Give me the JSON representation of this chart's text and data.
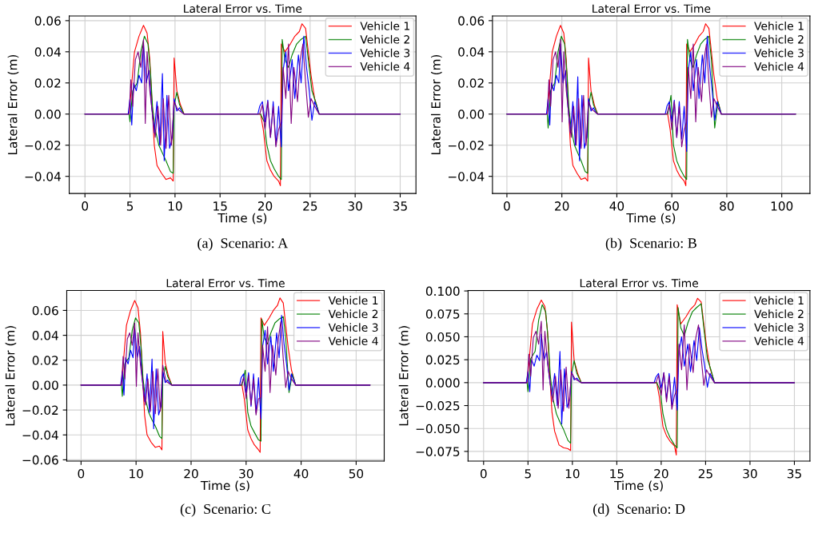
{
  "chart_data": [
    {
      "type": "line",
      "title": "Lateral Error vs. Time",
      "xlabel": "Time (s)",
      "ylabel": "Lateral Error (m)",
      "xlim": [
        -1.75,
        36.75
      ],
      "ylim": [
        -0.051,
        0.063
      ],
      "xticks": [
        0,
        5,
        10,
        15,
        20,
        25,
        30,
        35
      ],
      "yticks": [
        {
          "value": -0.04,
          "label": "−0.04"
        },
        {
          "value": -0.02,
          "label": "−0.02"
        },
        {
          "value": 0,
          "label": "0.00"
        },
        {
          "value": 0.02,
          "label": "0.02"
        },
        {
          "value": 0.04,
          "label": "0.04"
        },
        {
          "value": 0.06,
          "label": "0.06"
        }
      ],
      "grid": true,
      "legend": "top right",
      "annotations": [
        "(a)  Scenario: A"
      ],
      "series": [
        {
          "name": "Vehicle 1",
          "color": "#ff0000",
          "x": [
            0,
            4.9,
            5.2,
            5.5,
            6.0,
            6.5,
            6.9,
            7.2,
            7.5,
            7.7,
            8.0,
            8.5,
            9.0,
            9.5,
            9.8,
            9.9,
            10.2,
            10.6,
            11.0,
            19.5,
            19.8,
            20.2,
            20.6,
            21.0,
            21.5,
            21.7,
            21.8,
            22.2,
            22.8,
            23.3,
            23.8,
            24.1,
            24.5,
            24.8,
            25.1,
            25.5,
            26.0,
            35
          ],
          "values": [
            0,
            0,
            0.02,
            0.04,
            0.05,
            0.057,
            0.052,
            0.035,
            0,
            -0.02,
            -0.033,
            -0.038,
            -0.042,
            -0.041,
            -0.043,
            0.036,
            0.015,
            0.006,
            0,
            0,
            -0.01,
            -0.03,
            -0.036,
            -0.04,
            -0.043,
            -0.046,
            0.045,
            0.04,
            0.045,
            0.05,
            0.053,
            0.058,
            0.055,
            0.04,
            0.025,
            0.01,
            0,
            0
          ]
        },
        {
          "name": "Vehicle 2",
          "color": "#008000",
          "x": [
            0,
            4.9,
            5.0,
            5.3,
            5.8,
            6.2,
            6.6,
            7.0,
            7.3,
            7.5,
            7.8,
            8.2,
            8.6,
            9.0,
            9.5,
            9.8,
            9.9,
            10.2,
            10.5,
            11.0,
            19.5,
            19.9,
            20.2,
            20.6,
            21.0,
            21.5,
            21.8,
            21.9,
            22.2,
            22.6,
            23.0,
            23.5,
            24.0,
            24.5,
            24.8,
            25.2,
            25.6,
            26.0,
            35
          ],
          "values": [
            0,
            0,
            -0.005,
            0.015,
            0.02,
            0.04,
            0.05,
            0.045,
            0.025,
            0.005,
            -0.01,
            -0.02,
            -0.025,
            -0.03,
            -0.037,
            -0.038,
            0.005,
            0.014,
            0.006,
            0,
            0,
            -0.005,
            -0.02,
            -0.03,
            -0.035,
            -0.04,
            -0.042,
            0.048,
            0.035,
            0.03,
            0.038,
            0.045,
            0.048,
            0.05,
            0.035,
            0.015,
            0.008,
            0,
            0
          ]
        },
        {
          "name": "Vehicle 3",
          "color": "#0000ff",
          "x": [
            0,
            4.8,
            5.0,
            5.2,
            5.4,
            5.7,
            6.0,
            6.3,
            6.5,
            6.8,
            7.1,
            7.4,
            7.7,
            8.0,
            8.3,
            8.6,
            8.8,
            9.1,
            9.4,
            9.7,
            9.9,
            10.2,
            10.5,
            10.8,
            11.0,
            19.2,
            19.4,
            19.7,
            20.0,
            20.3,
            20.6,
            20.9,
            21.2,
            21.5,
            21.8,
            22.0,
            22.3,
            22.6,
            23.0,
            23.3,
            23.7,
            24.0,
            24.3,
            24.6,
            24.9,
            25.2,
            25.5,
            26.0,
            35
          ],
          "values": [
            0,
            0,
            0.01,
            -0.007,
            0.02,
            0.015,
            0.025,
            0.02,
            0.045,
            0.02,
            0.028,
            0.005,
            -0.012,
            0.008,
            -0.02,
            0.026,
            -0.03,
            0.012,
            -0.022,
            -0.015,
            0.01,
            0.002,
            0.004,
            0.001,
            0,
            0,
            0.005,
            0.008,
            -0.005,
            0.009,
            -0.015,
            0.008,
            -0.02,
            0.005,
            -0.021,
            0.028,
            0.04,
            0.015,
            0.035,
            0.01,
            0.038,
            0.02,
            0.05,
            0.03,
            0.015,
            -0.004,
            0.008,
            0,
            0
          ]
        },
        {
          "name": "Vehicle 4",
          "color": "#800080",
          "x": [
            0,
            4.9,
            5.1,
            5.3,
            5.6,
            5.9,
            6.2,
            6.5,
            6.7,
            6.9,
            7.2,
            7.5,
            7.8,
            8.1,
            8.4,
            8.7,
            9.0,
            9.3,
            9.6,
            9.9,
            10.3,
            11.0,
            19.4,
            19.7,
            20.0,
            20.3,
            20.6,
            20.9,
            21.2,
            21.5,
            21.8,
            22.0,
            22.3,
            22.6,
            22.9,
            23.2,
            23.6,
            23.9,
            24.2,
            24.5,
            24.8,
            25.1,
            25.5,
            26.0,
            35
          ],
          "values": [
            0,
            0,
            0.022,
            0.005,
            0.035,
            0.04,
            0.03,
            0.048,
            -0.006,
            0.04,
            0.015,
            0,
            -0.015,
            0.005,
            -0.02,
            0.01,
            -0.022,
            0.012,
            -0.02,
            0.008,
            0.003,
            0,
            0,
            0.006,
            -0.01,
            0.008,
            -0.015,
            0.005,
            -0.021,
            -0.01,
            -0.005,
            0.03,
            0.01,
            0.045,
            -0.006,
            0.03,
            0.008,
            0.035,
            0.045,
            0.02,
            -0.002,
            0.01,
            0.005,
            0,
            0
          ]
        }
      ]
    },
    {
      "type": "line",
      "title": "Lateral Error vs. Time",
      "xlabel": "Time (s)",
      "ylabel": "Lateral Error (m)",
      "xlim": [
        -5.25,
        110.25
      ],
      "ylim": [
        -0.051,
        0.063
      ],
      "xticks": [
        0,
        20,
        40,
        60,
        80,
        100
      ],
      "yticks": [
        {
          "value": -0.04,
          "label": "−0.04"
        },
        {
          "value": -0.02,
          "label": "−0.02"
        },
        {
          "value": 0,
          "label": "0.00"
        },
        {
          "value": 0.02,
          "label": "0.02"
        },
        {
          "value": 0.04,
          "label": "0.04"
        },
        {
          "value": 0.06,
          "label": "0.06"
        }
      ],
      "grid": true,
      "legend": "top right",
      "annotations": [
        "(b)  Scenario: B"
      ],
      "series": [
        {
          "name": "Vehicle 1",
          "color": "#ff0000",
          "x": [
            0,
            14.7,
            15.6,
            16.5,
            18,
            19.5,
            20.7,
            21.6,
            22.5,
            23.1,
            24,
            25.5,
            27,
            28.5,
            29.4,
            29.7,
            30.6,
            31.8,
            33,
            58.5,
            59.4,
            60.6,
            61.8,
            63,
            64.5,
            65.1,
            65.4,
            66.6,
            68.4,
            69.9,
            71.4,
            72.3,
            73.5,
            74.4,
            75.3,
            76.5,
            78,
            105
          ],
          "values": [
            0,
            0,
            0.02,
            0.04,
            0.05,
            0.057,
            0.052,
            0.035,
            0,
            -0.02,
            -0.033,
            -0.038,
            -0.042,
            -0.041,
            -0.043,
            0.036,
            0.015,
            0.006,
            0,
            0,
            -0.01,
            -0.03,
            -0.036,
            -0.04,
            -0.043,
            -0.046,
            0.045,
            0.04,
            0.045,
            0.05,
            0.053,
            0.058,
            0.055,
            0.04,
            0.025,
            0.01,
            0,
            0
          ]
        },
        {
          "name": "Vehicle 2",
          "color": "#008000",
          "x": [
            0,
            14.7,
            15,
            15.9,
            17.4,
            18.6,
            19.8,
            21,
            21.9,
            22.5,
            23.4,
            24.6,
            25.8,
            27,
            28.5,
            29.4,
            29.7,
            30.6,
            31.5,
            33,
            58.5,
            59.7,
            60.6,
            61.8,
            63,
            64.5,
            65.4,
            65.7,
            66.6,
            67.8,
            69,
            70.5,
            72,
            73.5,
            74.4,
            75.6,
            76.8,
            78,
            105
          ],
          "values": [
            0,
            0,
            -0.009,
            0.015,
            0.02,
            0.04,
            0.05,
            0.045,
            0.025,
            0.005,
            -0.01,
            -0.02,
            -0.025,
            -0.03,
            -0.037,
            -0.038,
            0.005,
            0.014,
            0.006,
            0,
            0,
            0.012,
            -0.02,
            -0.03,
            -0.035,
            -0.04,
            -0.042,
            0.048,
            0.035,
            0.03,
            0.038,
            0.045,
            0.048,
            0.05,
            0.035,
            -0.009,
            0.008,
            0,
            0
          ]
        },
        {
          "name": "Vehicle 3",
          "color": "#0000ff",
          "x": [
            0,
            14.4,
            15,
            15.6,
            16.2,
            17.1,
            18,
            18.9,
            19.5,
            20.4,
            21.3,
            22.2,
            23.1,
            24,
            24.9,
            25.8,
            26.4,
            27.3,
            28.2,
            29.1,
            29.7,
            30.6,
            31.5,
            32.4,
            33,
            57.6,
            58.2,
            59.1,
            60,
            60.9,
            61.8,
            62.7,
            63.6,
            64.5,
            65.4,
            66,
            66.9,
            67.8,
            69,
            69.9,
            71.1,
            72,
            72.9,
            73.8,
            74.7,
            75.6,
            76.5,
            78,
            105
          ],
          "values": [
            0,
            0,
            0.01,
            -0.007,
            0.02,
            0.015,
            0.025,
            0.02,
            0.045,
            0.02,
            0.028,
            0.005,
            -0.012,
            0.008,
            -0.02,
            0.024,
            -0.03,
            0.012,
            -0.022,
            -0.015,
            0.01,
            0.002,
            0.004,
            0.001,
            0,
            0,
            0.005,
            0.008,
            -0.005,
            0.009,
            -0.015,
            0.008,
            -0.016,
            0.005,
            -0.024,
            0.028,
            0.04,
            0.015,
            0.035,
            0.01,
            0.038,
            0.02,
            0.05,
            0.03,
            0.015,
            -0.004,
            0.008,
            0,
            0
          ]
        },
        {
          "name": "Vehicle 4",
          "color": "#800080",
          "x": [
            0,
            14.7,
            15.3,
            15.9,
            16.8,
            17.7,
            18.6,
            19.5,
            20.1,
            20.7,
            21.6,
            22.5,
            23.4,
            24.3,
            25.2,
            26.1,
            27,
            27.9,
            28.8,
            29.7,
            30.9,
            33,
            58.2,
            59.1,
            60,
            60.9,
            61.8,
            62.7,
            63.6,
            64.5,
            65.4,
            66,
            66.9,
            67.8,
            68.7,
            69.6,
            70.8,
            71.7,
            72.6,
            73.5,
            74.4,
            75.3,
            76.5,
            78,
            105
          ],
          "values": [
            0,
            0,
            0.022,
            0.005,
            0.035,
            0.04,
            0.03,
            0.048,
            -0.005,
            0.04,
            0.015,
            0,
            -0.015,
            0.005,
            -0.02,
            0.01,
            -0.022,
            0.012,
            -0.02,
            0.008,
            0.003,
            0,
            0,
            0.006,
            -0.01,
            0.008,
            -0.015,
            0.005,
            -0.021,
            -0.01,
            -0.005,
            0.03,
            0.01,
            0.045,
            -0.005,
            0.03,
            0.008,
            0.035,
            0.045,
            0.02,
            -0.002,
            0.01,
            0.005,
            0,
            0
          ]
        }
      ]
    },
    {
      "type": "line",
      "title": "Lateral Error vs. Time",
      "xlabel": "Time (s)",
      "ylabel": "Lateral Error (m)",
      "xlim": [
        -2.6,
        55.1
      ],
      "ylim": [
        -0.061,
        0.076
      ],
      "xticks": [
        0,
        10,
        20,
        30,
        40,
        50
      ],
      "yticks": [
        {
          "value": -0.06,
          "label": "−0.06"
        },
        {
          "value": -0.04,
          "label": "−0.04"
        },
        {
          "value": -0.02,
          "label": "−0.02"
        },
        {
          "value": 0,
          "label": "0.00"
        },
        {
          "value": 0.02,
          "label": "0.02"
        },
        {
          "value": 0.04,
          "label": "0.04"
        },
        {
          "value": 0.06,
          "label": "0.06"
        }
      ],
      "grid": true,
      "legend": "top right",
      "annotations": [
        "(c)  Scenario: C"
      ],
      "series": [
        {
          "name": "Vehicle 1",
          "color": "#ff0000",
          "x": [
            0,
            7.35,
            7.8,
            8.25,
            9,
            9.75,
            10.35,
            10.8,
            11.25,
            11.55,
            12,
            12.75,
            13.5,
            14.25,
            14.7,
            14.85,
            15.3,
            15.9,
            16.5,
            29.25,
            29.7,
            30.3,
            30.9,
            31.5,
            32.25,
            32.55,
            32.7,
            33.3,
            34.2,
            34.95,
            35.7,
            36.15,
            36.75,
            37.2,
            37.65,
            38.25,
            39,
            52.5
          ],
          "values": [
            0,
            0,
            0.024,
            0.048,
            0.06,
            0.068,
            0.062,
            0.042,
            0,
            -0.024,
            -0.04,
            -0.046,
            -0.05,
            -0.049,
            -0.052,
            0.043,
            0.018,
            0.007,
            0,
            0,
            -0.012,
            -0.036,
            -0.043,
            -0.048,
            -0.052,
            -0.054,
            0.054,
            0.048,
            0.054,
            0.06,
            0.064,
            0.07,
            0.066,
            0.048,
            0.03,
            0.012,
            0,
            0
          ]
        },
        {
          "name": "Vehicle 2",
          "color": "#008000",
          "x": [
            0,
            7.35,
            7.5,
            7.95,
            8.7,
            9.3,
            9.9,
            10.5,
            10.95,
            11.25,
            11.7,
            12.3,
            12.9,
            13.5,
            14.25,
            14.7,
            14.85,
            15.3,
            15.75,
            16.5,
            29.25,
            29.85,
            30.3,
            30.9,
            31.5,
            32.25,
            32.7,
            32.85,
            33.3,
            33.9,
            34.5,
            35.25,
            36,
            36.75,
            37.2,
            37.8,
            38.4,
            39,
            52.5
          ],
          "values": [
            0,
            0,
            -0.009,
            0.017,
            0.022,
            0.044,
            0.054,
            0.05,
            0.028,
            0.006,
            -0.011,
            -0.022,
            -0.028,
            -0.033,
            -0.041,
            -0.043,
            0.005,
            0.015,
            0.007,
            0,
            0,
            0.012,
            -0.022,
            -0.033,
            -0.038,
            -0.044,
            -0.045,
            0.053,
            0.038,
            0.033,
            0.042,
            0.05,
            0.053,
            0.055,
            0.038,
            -0.006,
            0.009,
            0,
            0
          ]
        },
        {
          "name": "Vehicle 3",
          "color": "#0000ff",
          "x": [
            0,
            7.2,
            7.5,
            7.8,
            8.1,
            8.55,
            9,
            9.45,
            9.75,
            10.2,
            10.65,
            11.1,
            11.55,
            12,
            12.45,
            12.9,
            13.2,
            13.65,
            14.1,
            14.55,
            14.85,
            15.3,
            15.75,
            16.2,
            16.5,
            28.8,
            29.1,
            29.55,
            30,
            30.45,
            30.9,
            31.35,
            31.8,
            32.25,
            32.7,
            33,
            33.45,
            33.9,
            34.5,
            34.95,
            35.55,
            36,
            36.45,
            36.9,
            37.35,
            37.8,
            38.25,
            39,
            52.5
          ],
          "values": [
            0,
            0,
            0.011,
            -0.008,
            0.022,
            0.017,
            0.028,
            0.022,
            0.046,
            0.022,
            0.031,
            0.006,
            -0.013,
            0.009,
            -0.022,
            0.021,
            -0.035,
            0.013,
            -0.024,
            -0.017,
            0.011,
            0.002,
            0.004,
            0.001,
            0,
            0,
            0.006,
            0.009,
            -0.006,
            0.01,
            -0.017,
            0.009,
            -0.022,
            0.006,
            -0.027,
            0.031,
            0.044,
            0.017,
            0.039,
            0.011,
            0.042,
            0.022,
            0.056,
            0.033,
            0.017,
            -0.004,
            0.009,
            0,
            0
          ]
        },
        {
          "name": "Vehicle 4",
          "color": "#800080",
          "x": [
            0,
            7.35,
            7.65,
            7.95,
            8.4,
            8.85,
            9.3,
            9.75,
            10.05,
            10.35,
            10.8,
            11.25,
            11.7,
            12.15,
            12.6,
            13.05,
            13.5,
            13.95,
            14.4,
            14.85,
            15.45,
            16.5,
            29.1,
            29.55,
            30,
            30.45,
            30.9,
            31.35,
            31.8,
            32.25,
            32.7,
            33,
            33.45,
            33.9,
            34.35,
            34.8,
            35.4,
            35.85,
            36.3,
            36.75,
            37.2,
            37.65,
            38.25,
            39,
            52.5
          ],
          "values": [
            0,
            0,
            0.023,
            0.005,
            0.037,
            0.042,
            0.032,
            0.05,
            -0.001,
            0.042,
            0.016,
            0,
            -0.016,
            0.005,
            -0.021,
            0.011,
            -0.023,
            0.013,
            -0.021,
            0.016,
            0.003,
            0,
            0,
            0.006,
            -0.011,
            0.008,
            -0.016,
            0.005,
            -0.024,
            -0.011,
            -0.01,
            0.032,
            0.011,
            0.047,
            -0.006,
            0.032,
            0.008,
            0.037,
            0.051,
            0.021,
            -0.002,
            0.011,
            0.005,
            0,
            0
          ]
        }
      ]
    },
    {
      "type": "line",
      "title": "Lateral Error vs. Time",
      "xlabel": "Time (s)",
      "ylabel": "Lateral Error (m)",
      "xlim": [
        -1.75,
        36.75
      ],
      "ylim": [
        -0.0855,
        0.1005
      ],
      "xticks": [
        0,
        5,
        10,
        15,
        20,
        25,
        30,
        35
      ],
      "yticks": [
        {
          "value": -0.075,
          "label": "−0.075"
        },
        {
          "value": -0.05,
          "label": "−0.050"
        },
        {
          "value": -0.025,
          "label": "−0.025"
        },
        {
          "value": 0,
          "label": "0.000"
        },
        {
          "value": 0.025,
          "label": "0.025"
        },
        {
          "value": 0.05,
          "label": "0.050"
        },
        {
          "value": 0.075,
          "label": "0.075"
        },
        {
          "value": 0.1,
          "label": "0.100"
        }
      ],
      "grid": true,
      "legend": "top right",
      "annotations": [
        "(d)  Scenario: D"
      ],
      "series": [
        {
          "name": "Vehicle 1",
          "color": "#ff0000",
          "x": [
            0,
            4.9,
            5.2,
            5.5,
            6.0,
            6.5,
            6.9,
            7.2,
            7.5,
            7.7,
            8.0,
            8.5,
            9.0,
            9.5,
            9.8,
            9.9,
            10.2,
            10.6,
            11.0,
            19.5,
            19.8,
            20.2,
            20.6,
            21.0,
            21.5,
            21.7,
            21.8,
            22.2,
            22.8,
            23.3,
            23.8,
            24.1,
            24.5,
            24.8,
            25.1,
            25.5,
            26.0,
            35
          ],
          "values": [
            0,
            0,
            0.032,
            0.064,
            0.08,
            0.09,
            0.083,
            0.056,
            0,
            -0.032,
            -0.053,
            -0.068,
            -0.071,
            -0.072,
            -0.074,
            0.066,
            0.024,
            0.01,
            0,
            0,
            -0.016,
            -0.048,
            -0.058,
            -0.064,
            -0.069,
            -0.079,
            0.085,
            0.064,
            0.072,
            0.08,
            0.085,
            0.092,
            0.088,
            0.064,
            0.04,
            0.016,
            0,
            0
          ]
        },
        {
          "name": "Vehicle 2",
          "color": "#008000",
          "x": [
            0,
            4.9,
            5.0,
            5.3,
            5.8,
            6.2,
            6.6,
            7.0,
            7.3,
            7.5,
            7.8,
            8.2,
            8.6,
            9.0,
            9.5,
            9.8,
            9.9,
            10.2,
            10.5,
            11.0,
            19.5,
            19.9,
            20.2,
            20.6,
            21.0,
            21.5,
            21.8,
            21.9,
            22.2,
            22.6,
            23.0,
            23.5,
            24.0,
            24.5,
            24.8,
            25.2,
            25.6,
            26.0,
            35
          ],
          "values": [
            0,
            0,
            -0.01,
            0.026,
            0.034,
            0.068,
            0.085,
            0.077,
            0.043,
            0.009,
            -0.017,
            -0.034,
            -0.043,
            -0.051,
            -0.063,
            -0.066,
            0.009,
            0.024,
            0.01,
            0,
            0,
            -0.009,
            -0.034,
            -0.051,
            -0.06,
            -0.068,
            -0.071,
            0.082,
            0.06,
            0.051,
            0.065,
            0.077,
            0.082,
            0.086,
            0.06,
            0.026,
            0.014,
            0,
            0
          ]
        },
        {
          "name": "Vehicle 3",
          "color": "#0000ff",
          "x": [
            0,
            4.8,
            5.0,
            5.2,
            5.4,
            5.7,
            6.0,
            6.3,
            6.5,
            6.8,
            7.1,
            7.4,
            7.7,
            8.0,
            8.3,
            8.6,
            8.8,
            9.1,
            9.4,
            9.7,
            9.9,
            10.2,
            10.5,
            10.8,
            11.0,
            19.2,
            19.4,
            19.7,
            20.0,
            20.3,
            20.6,
            20.9,
            21.2,
            21.5,
            21.8,
            22.0,
            22.3,
            22.6,
            23.0,
            23.3,
            23.7,
            24.0,
            24.3,
            24.6,
            24.9,
            25.2,
            25.5,
            26.0,
            35
          ],
          "values": [
            0,
            0,
            0.012,
            -0.01,
            0.025,
            0.018,
            0.03,
            0.024,
            0.053,
            0.024,
            0.034,
            0.006,
            -0.015,
            0.01,
            -0.025,
            0.034,
            -0.045,
            0.015,
            -0.027,
            -0.018,
            0.012,
            0.003,
            0.005,
            0.001,
            0,
            0,
            0.006,
            0.01,
            -0.006,
            0.011,
            -0.018,
            0.01,
            -0.025,
            0.006,
            -0.03,
            0.034,
            0.05,
            0.018,
            0.042,
            0.012,
            0.046,
            0.024,
            0.06,
            0.036,
            0.018,
            -0.005,
            0.01,
            0,
            0
          ]
        },
        {
          "name": "Vehicle 4",
          "color": "#800080",
          "x": [
            0,
            4.9,
            5.1,
            5.3,
            5.6,
            5.9,
            6.2,
            6.5,
            6.7,
            6.9,
            7.2,
            7.5,
            7.8,
            8.1,
            8.4,
            8.7,
            9.0,
            9.3,
            9.6,
            9.9,
            10.3,
            11.0,
            19.4,
            19.7,
            20.0,
            20.3,
            20.6,
            20.9,
            21.2,
            21.5,
            21.8,
            22.0,
            22.3,
            22.6,
            22.9,
            23.2,
            23.6,
            23.9,
            24.2,
            24.5,
            24.8,
            25.1,
            25.5,
            26.0,
            35
          ],
          "values": [
            0,
            0,
            0.031,
            0.007,
            0.049,
            0.056,
            0.042,
            0.067,
            -0.008,
            0.056,
            0.021,
            0,
            -0.021,
            0.007,
            -0.028,
            0.014,
            -0.031,
            0.017,
            -0.028,
            0.011,
            0.004,
            0,
            0,
            0.008,
            -0.014,
            0.011,
            -0.021,
            0.007,
            -0.029,
            -0.014,
            -0.007,
            0.042,
            0.014,
            0.063,
            -0.008,
            0.042,
            0.011,
            0.049,
            0.063,
            0.028,
            -0.003,
            0.014,
            0.007,
            0,
            0
          ]
        }
      ]
    }
  ]
}
